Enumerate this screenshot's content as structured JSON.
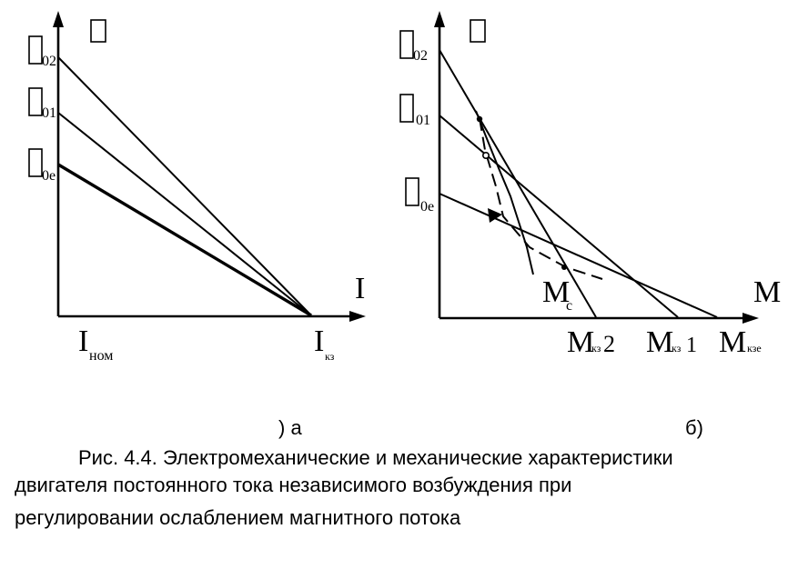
{
  "figure": {
    "left_panel": {
      "x_axis_label": "I",
      "y_markers": [
        {
          "main": "",
          "sub": "02"
        },
        {
          "main": "",
          "sub": "01"
        },
        {
          "main": "",
          "sub": "0e"
        }
      ],
      "x_markers": [
        {
          "main": "I",
          "sub": "ном"
        },
        {
          "main": "I",
          "sub": "кз"
        }
      ],
      "panel_label": ") а"
    },
    "right_panel": {
      "x_axis_label": "M",
      "y_markers": [
        {
          "main": "",
          "sub": "02"
        },
        {
          "main": "",
          "sub": "01"
        },
        {
          "main": "",
          "sub": "0е"
        }
      ],
      "load_marker": {
        "main": "M",
        "sub": "c"
      },
      "x_markers": [
        {
          "main": "M",
          "sub": "кз",
          "suffix": "2"
        },
        {
          "main": "M",
          "sub": "кз",
          "suffix": "1"
        },
        {
          "main": "M",
          "sub": "кзе",
          "suffix": ""
        }
      ],
      "panel_label": "б)"
    }
  },
  "caption": {
    "line1": "Рис. 4.4. Электромеханические и механические характеристики",
    "line2": "двигателя постоянного тока независимого возбуждения при",
    "line3": "регулировании ослаблением магнитного потока"
  }
}
